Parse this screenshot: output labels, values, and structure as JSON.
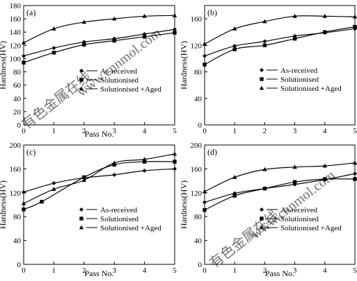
{
  "chart_data": [
    {
      "type": "line",
      "panel_label": "(a)",
      "xlabel": "Pass No.",
      "ylabel": "Hardness(HV)",
      "xlim": [
        0,
        5
      ],
      "ylim": [
        0,
        180
      ],
      "xticks": [
        0,
        1,
        2,
        3,
        4,
        5
      ],
      "yticks": [
        0,
        20,
        40,
        60,
        80,
        100,
        120,
        140,
        160,
        180
      ],
      "grid": false,
      "legend_position": "center-left",
      "series": [
        {
          "name": "As-received",
          "marker": "diamond",
          "x": [
            0,
            1,
            2,
            3,
            4,
            5
          ],
          "y": [
            104,
            116,
            125,
            130,
            137,
            144
          ]
        },
        {
          "name": "Solutionised",
          "marker": "square",
          "x": [
            0,
            1,
            2,
            3,
            4,
            5
          ],
          "y": [
            94,
            109,
            121,
            127,
            133,
            139
          ]
        },
        {
          "name": "Solutionised +Aged",
          "marker": "triangle",
          "x": [
            0,
            1,
            2,
            3,
            4,
            5
          ],
          "y": [
            124,
            145,
            155,
            160,
            164,
            165
          ]
        }
      ]
    },
    {
      "type": "line",
      "panel_label": "(b)",
      "xlabel": "",
      "ylabel": "Hardness(HV)",
      "xlim": [
        0,
        5
      ],
      "ylim": [
        0,
        180
      ],
      "xticks": [
        0,
        1,
        2,
        3,
        4,
        5
      ],
      "yticks": [
        0,
        40,
        80,
        120,
        160
      ],
      "grid": false,
      "legend_position": "center",
      "series": [
        {
          "name": "As-received",
          "marker": "diamond",
          "x": [
            0,
            1,
            2,
            3,
            4,
            5
          ],
          "y": [
            104,
            119,
            126,
            134,
            139,
            145
          ]
        },
        {
          "name": "Solutionised",
          "marker": "square",
          "x": [
            0,
            1,
            2,
            3,
            4,
            5
          ],
          "y": [
            91,
            114,
            120,
            130,
            140,
            148
          ]
        },
        {
          "name": "Solutionised +Aged",
          "marker": "triangle",
          "x": [
            0,
            1,
            2,
            3,
            4,
            5
          ],
          "y": [
            122,
            145,
            156,
            164,
            164,
            163
          ]
        }
      ]
    },
    {
      "type": "line",
      "panel_label": "(c)",
      "xlabel": "Pass No.",
      "ylabel": "Hardness(HV)",
      "xlim": [
        0,
        5
      ],
      "ylim": [
        0,
        200
      ],
      "xticks": [
        0,
        1,
        2,
        3,
        4,
        5
      ],
      "yticks": [
        0,
        40,
        80,
        120,
        160,
        200
      ],
      "grid": false,
      "legend_position": "center-left",
      "series": [
        {
          "name": "As-received",
          "marker": "diamond",
          "x": [
            0,
            1,
            2,
            3,
            4,
            5
          ],
          "y": [
            121,
            136,
            145,
            150,
            157,
            160
          ]
        },
        {
          "name": "Solutionised",
          "marker": "square",
          "x": [
            0,
            0.6,
            2,
            3,
            4,
            5
          ],
          "y": [
            92,
            105,
            146,
            167,
            172,
            172
          ]
        },
        {
          "name": "Solutionised +Aged",
          "marker": "triangle",
          "x": [
            0,
            1,
            2,
            3,
            4,
            5
          ],
          "y": [
            102,
            126,
            141,
            170,
            176,
            185
          ]
        }
      ]
    },
    {
      "type": "line",
      "panel_label": "(d)",
      "xlabel": "Pass No.",
      "ylabel": "Hardness(HV)",
      "xlim": [
        0,
        5
      ],
      "ylim": [
        0,
        200
      ],
      "xticks": [
        0,
        1,
        2,
        3,
        4,
        5
      ],
      "yticks": [
        0,
        40,
        80,
        120,
        160,
        200
      ],
      "grid": false,
      "legend_position": "center",
      "series": [
        {
          "name": "As-received",
          "marker": "diamond",
          "x": [
            0,
            1,
            2,
            3,
            4,
            5
          ],
          "y": [
            104,
            119,
            127,
            134,
            142,
            152
          ]
        },
        {
          "name": "Solutionised",
          "marker": "square",
          "x": [
            0,
            1,
            2,
            3,
            4,
            5
          ],
          "y": [
            91,
            115,
            127,
            138,
            143,
            143
          ]
        },
        {
          "name": "Solutionised +Aged",
          "marker": "triangle",
          "x": [
            0,
            1,
            2,
            3,
            4,
            5
          ],
          "y": [
            122,
            146,
            159,
            163,
            165,
            170
          ]
        }
      ]
    }
  ],
  "watermark": {
    "text_cn": "有色金属在线",
    "text_url": "www.cnnmol.com"
  }
}
